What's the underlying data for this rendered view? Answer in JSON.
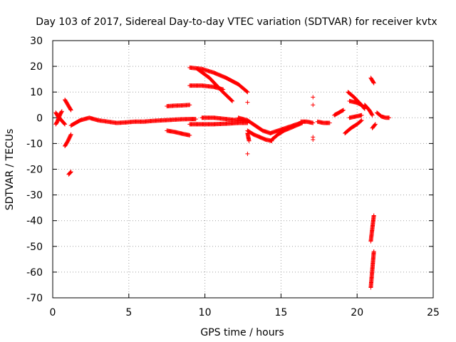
{
  "chart_data": {
    "type": "scatter",
    "title": "Day 103 of 2017, Sidereal Day-to-day VTEC variation (SDTVAR) for receiver kvtx",
    "xlabel": "GPS time / hours",
    "ylabel": "SDTVAR / TECUs",
    "xlim": [
      0,
      25
    ],
    "ylim": [
      -70,
      30
    ],
    "xticks": [
      "0",
      "5",
      "10",
      "15",
      "20",
      "25"
    ],
    "yticks": [
      "30",
      "20",
      "10",
      "0",
      "-10",
      "-20",
      "-30",
      "-40",
      "-50",
      "-60",
      "-70"
    ],
    "grid": true,
    "legend": "none",
    "marker": "+",
    "color": "#ff0000",
    "segments": [
      {
        "x": [
          0.2,
          0.35,
          0.5,
          0.65,
          0.8
        ],
        "y": [
          2,
          0.5,
          -0.5,
          -1.5,
          -2.5
        ]
      },
      {
        "x": [
          0.2,
          0.3,
          0.4,
          0.5,
          0.6
        ],
        "y": [
          -2.5,
          -1.5,
          0,
          1.5,
          2.5
        ]
      },
      {
        "x": [
          0.8,
          1.0,
          1.2
        ],
        "y": [
          7,
          5,
          3
        ]
      },
      {
        "x": [
          0.8,
          1.0,
          1.2
        ],
        "y": [
          -11,
          -9,
          -6.5
        ]
      },
      {
        "x": [
          1.05,
          1.2
        ],
        "y": [
          -22,
          -21
        ]
      },
      {
        "x": [
          1.2,
          1.8,
          2.4,
          3.0,
          3.6,
          4.2,
          4.8,
          5.4,
          6.0,
          6.6,
          7.2,
          7.8,
          8.4,
          9.0,
          9.4
        ],
        "y": [
          -3,
          -1,
          0,
          -1,
          -1.5,
          -2,
          -1.8,
          -1.5,
          -1.5,
          -1.2,
          -1,
          -0.8,
          -0.6,
          -0.5,
          -0.5
        ]
      },
      {
        "x": [
          7.5,
          8.0,
          8.5,
          9.0
        ],
        "y": [
          4.5,
          4.7,
          4.8,
          5
        ]
      },
      {
        "x": [
          7.5,
          8.0,
          8.5,
          9.0
        ],
        "y": [
          -5,
          -5.5,
          -6.2,
          -6.8
        ]
      },
      {
        "x": [
          9.0,
          9.8,
          10.6,
          11.4,
          12.2,
          12.8
        ],
        "y": [
          19.5,
          19,
          17.5,
          15.5,
          13,
          10
        ]
      },
      {
        "x": [
          9.5,
          10.3,
          11.1,
          11.8
        ],
        "y": [
          19,
          15.5,
          10.5,
          6.5
        ]
      },
      {
        "x": [
          9.0,
          9.8,
          10.6,
          11.2
        ],
        "y": [
          12.5,
          12.5,
          12,
          11
        ]
      },
      {
        "x": [
          9.0,
          9.8,
          10.6,
          11.4,
          12.2,
          12.8
        ],
        "y": [
          -2.5,
          -2.5,
          -2.5,
          -2.3,
          -2,
          -2
        ]
      },
      {
        "x": [
          9.8,
          10.6,
          11.4,
          12.2,
          12.8
        ],
        "y": [
          0,
          0,
          -0.5,
          -1,
          -1.5
        ]
      },
      {
        "x": [
          12.8,
          13.2,
          13.6,
          14.0,
          14.4
        ],
        "y": [
          -5,
          -6.5,
          -7.5,
          -8.5,
          -9
        ]
      },
      {
        "x": [
          12.2,
          12.8,
          13.3,
          13.8,
          14.3,
          14.8,
          15.3,
          15.8,
          16.3
        ],
        "y": [
          0,
          -1,
          -3,
          -5,
          -6,
          -5,
          -4,
          -3,
          -2
        ]
      },
      {
        "x": [
          12.8,
          12.9
        ],
        "y": [
          -6,
          -9
        ]
      },
      {
        "x": [
          12.8
        ],
        "y": [
          -14
        ]
      },
      {
        "x": [
          12.8
        ],
        "y": [
          6
        ]
      },
      {
        "x": [
          14.4,
          14.8,
          15.2,
          15.6,
          16.0,
          16.4
        ],
        "y": [
          -8.5,
          -6.5,
          -5,
          -4,
          -3,
          -2
        ]
      },
      {
        "x": [
          16.3,
          16.7,
          17.1
        ],
        "y": [
          -1.5,
          -1.5,
          -2
        ]
      },
      {
        "x": [
          17.1
        ],
        "y": [
          8
        ]
      },
      {
        "x": [
          17.1
        ],
        "y": [
          5
        ]
      },
      {
        "x": [
          17.1
        ],
        "y": [
          -7.5
        ]
      },
      {
        "x": [
          17.1
        ],
        "y": [
          -8.5
        ]
      },
      {
        "x": [
          17.4,
          17.8,
          18.2
        ],
        "y": [
          -1.5,
          -2,
          -2
        ]
      },
      {
        "x": [
          18.5,
          18.8,
          19.1
        ],
        "y": [
          1,
          2,
          3
        ]
      },
      {
        "x": [
          19.2,
          19.6,
          20.0,
          20.3
        ],
        "y": [
          -6,
          -4,
          -2.5,
          -1
        ]
      },
      {
        "x": [
          19.4,
          19.8,
          20.2,
          20.5
        ],
        "y": [
          10,
          8,
          5.5,
          3.5
        ]
      },
      {
        "x": [
          19.5,
          19.9,
          20.3
        ],
        "y": [
          6.5,
          6,
          5
        ]
      },
      {
        "x": [
          19.5,
          19.9,
          20.3
        ],
        "y": [
          0,
          0.5,
          1
        ]
      },
      {
        "x": [
          20.5,
          20.8,
          21.0
        ],
        "y": [
          5,
          3,
          1
        ]
      },
      {
        "x": [
          20.9,
          21.1
        ],
        "y": [
          15.5,
          13.5
        ]
      },
      {
        "x": [
          21.0,
          21.2
        ],
        "y": [
          -4,
          -2.5
        ]
      },
      {
        "x": [
          21.3,
          21.6,
          21.9,
          22.1
        ],
        "y": [
          2,
          0.5,
          0,
          0
        ]
      },
      {
        "x": [
          20.9,
          21.1
        ],
        "y": [
          -66,
          -52
        ]
      },
      {
        "x": [
          20.9,
          21.1
        ],
        "y": [
          -48,
          -38
        ]
      }
    ]
  }
}
